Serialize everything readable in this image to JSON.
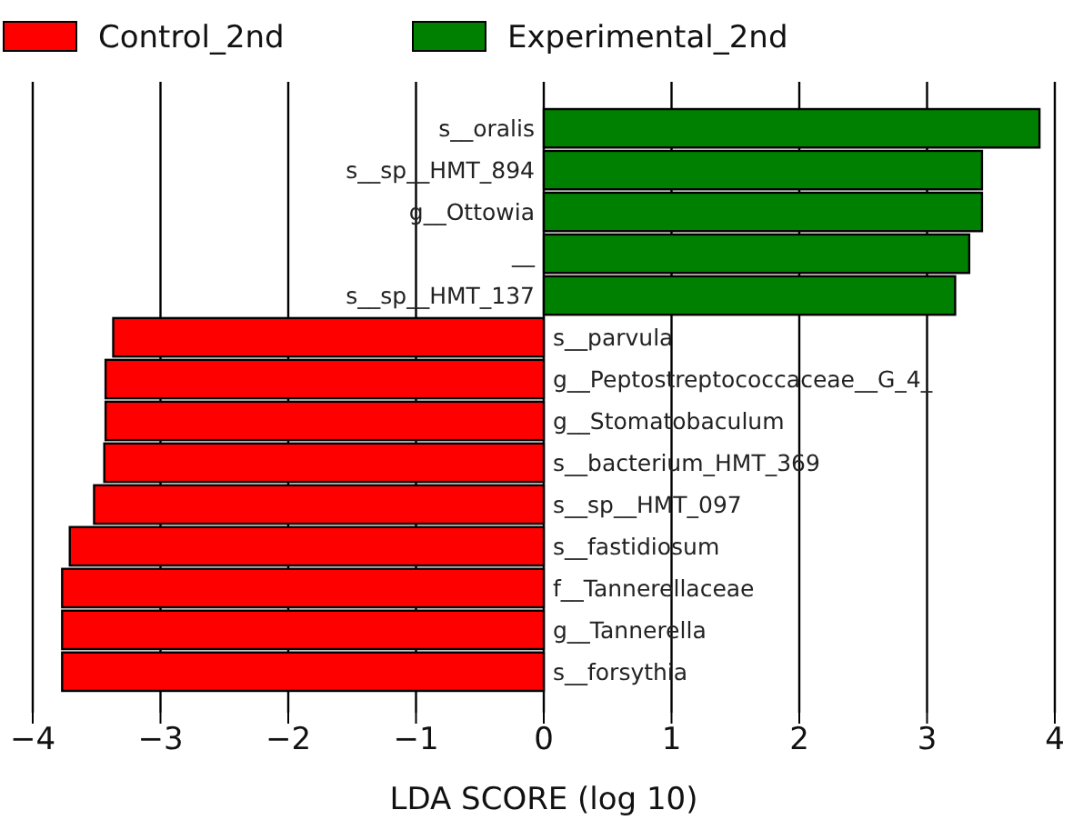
{
  "chart_data": {
    "type": "bar",
    "orientation": "horizontal",
    "xlabel": "LDA SCORE (log 10)",
    "categories": [
      "s__oralis",
      "s__sp__HMT_894",
      "g__Ottowia",
      "__",
      "s__sp__HMT_137",
      "s__parvula",
      "g__Peptostreptococcaceae__G_4_",
      "g__Stomatobaculum",
      "s__bacterium_HMT_369",
      "s__sp__HMT_097",
      "s__fastidiosum",
      "f__Tannerellaceae",
      "g__Tannerella",
      "s__forsythia"
    ],
    "series": [
      {
        "name": "Control_2nd",
        "color": "#ff0000",
        "values": [
          null,
          null,
          null,
          null,
          null,
          -3.37,
          -3.43,
          -3.43,
          -3.44,
          -3.52,
          -3.71,
          -3.77,
          -3.77,
          -3.77
        ]
      },
      {
        "name": "Experimental_2nd",
        "color": "#008000",
        "values": [
          3.88,
          3.43,
          3.43,
          3.33,
          3.22,
          null,
          null,
          null,
          null,
          null,
          null,
          null,
          null,
          null
        ]
      }
    ],
    "xlim": [
      -4,
      4
    ],
    "xticks": [
      {
        "value": -4,
        "label": "−4"
      },
      {
        "value": -3,
        "label": "−3"
      },
      {
        "value": -2,
        "label": "−2"
      },
      {
        "value": -1,
        "label": "−1"
      },
      0,
      1,
      2,
      3,
      4
    ],
    "grid": "x",
    "legend": "top left"
  }
}
